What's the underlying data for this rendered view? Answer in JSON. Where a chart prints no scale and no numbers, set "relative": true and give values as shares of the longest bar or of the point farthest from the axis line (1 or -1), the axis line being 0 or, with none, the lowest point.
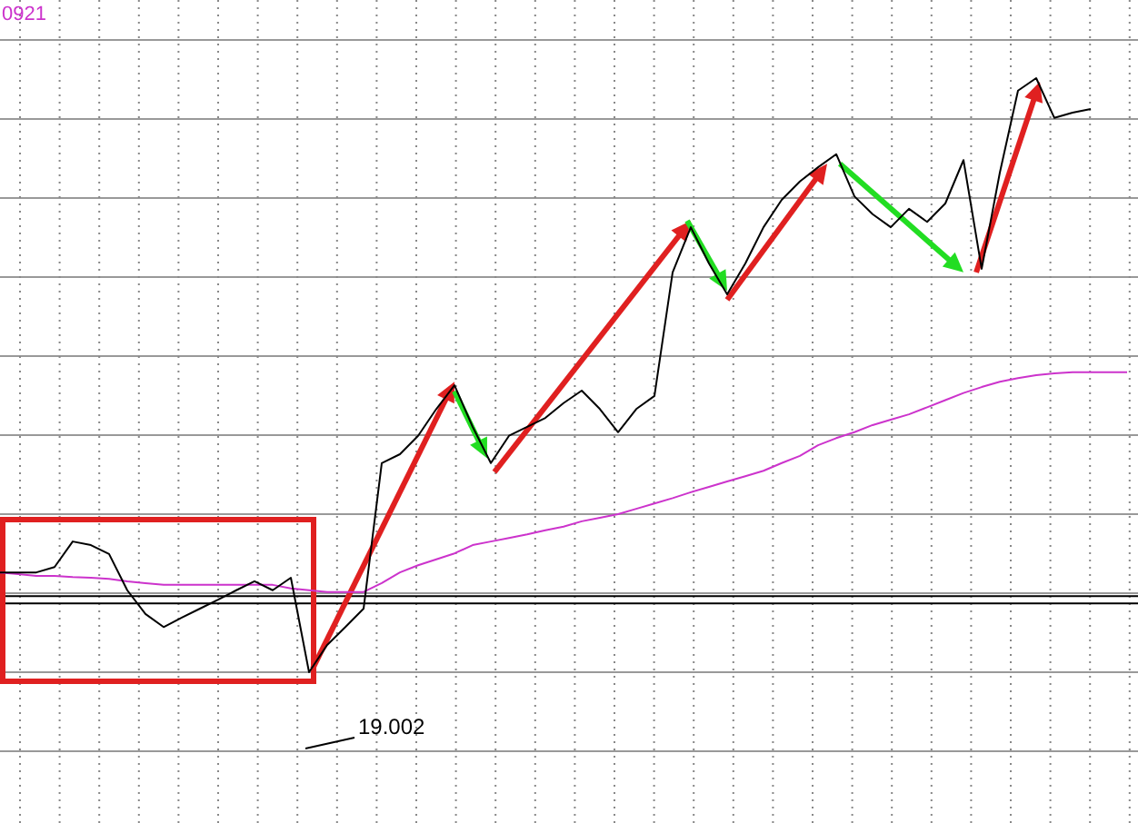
{
  "chart_data": {
    "type": "line",
    "title": "0921",
    "relative": true,
    "grid": true,
    "categories": [
      null,
      null,
      null,
      null,
      null,
      null,
      null,
      null,
      null,
      null,
      null,
      null,
      null,
      null,
      null,
      null,
      null,
      null,
      null,
      null,
      null,
      null,
      null,
      null,
      null,
      null,
      null,
      null,
      null,
      null,
      null,
      null,
      null,
      null,
      null,
      null,
      null,
      null,
      null,
      null,
      null,
      null,
      null,
      null,
      null,
      null,
      null,
      null,
      null,
      null,
      null,
      null,
      null,
      null,
      null,
      null,
      null,
      null,
      null,
      null,
      null,
      null,
      null
    ],
    "series": [
      {
        "color": "#000000",
        "values": [
          0.168,
          0.168,
          0.168,
          0.177,
          0.22,
          0.214,
          0.199,
          0.138,
          0.098,
          0.076,
          0.092,
          0.107,
          0.122,
          0.138,
          0.153,
          0.138,
          0.159,
          0,
          0.046,
          0.076,
          0.107,
          0.352,
          0.367,
          0.398,
          0.443,
          0.483,
          0.413,
          0.352,
          0.398,
          0.413,
          0.428,
          0.453,
          0.474,
          0.443,
          0.404,
          0.443,
          0.465,
          0.673,
          0.749,
          0.688,
          0.636,
          0.688,
          0.749,
          0.795,
          0.826,
          0.85,
          0.872,
          0.801,
          0.771,
          0.749,
          0.78,
          0.758,
          0.789,
          0.862,
          0.679,
          0.841,
          0.979,
          1,
          0.933,
          0.942,
          0.948,
          null,
          null
        ]
      },
      {
        "color": "#cc33cc",
        "values": [
          0.168,
          0.165,
          0.162,
          0.162,
          0.16,
          0.159,
          0.157,
          0.153,
          0.15,
          0.147,
          0.147,
          0.147,
          0.147,
          0.147,
          0.147,
          0.147,
          0.141,
          0.138,
          0.135,
          0.135,
          0.135,
          0.15,
          0.168,
          0.18,
          0.19,
          0.2,
          0.214,
          0.22,
          0.226,
          0.232,
          0.239,
          0.245,
          0.254,
          0.26,
          0.266,
          0.275,
          0.284,
          0.293,
          0.303,
          0.312,
          0.321,
          0.33,
          0.339,
          0.352,
          0.364,
          0.382,
          0.394,
          0.404,
          0.416,
          0.425,
          0.434,
          0.446,
          0.458,
          0.47,
          0.48,
          0.489,
          0.495,
          0.5,
          0.503,
          0.505,
          0.505,
          0.505,
          0.505
        ]
      }
    ],
    "ref_lines": [
      {
        "axis": "y",
        "value": 0.128,
        "color": "#000000"
      },
      {
        "axis": "y",
        "value": 0.116,
        "color": "#000000"
      }
    ],
    "annotations": [
      "19.002"
    ]
  }
}
